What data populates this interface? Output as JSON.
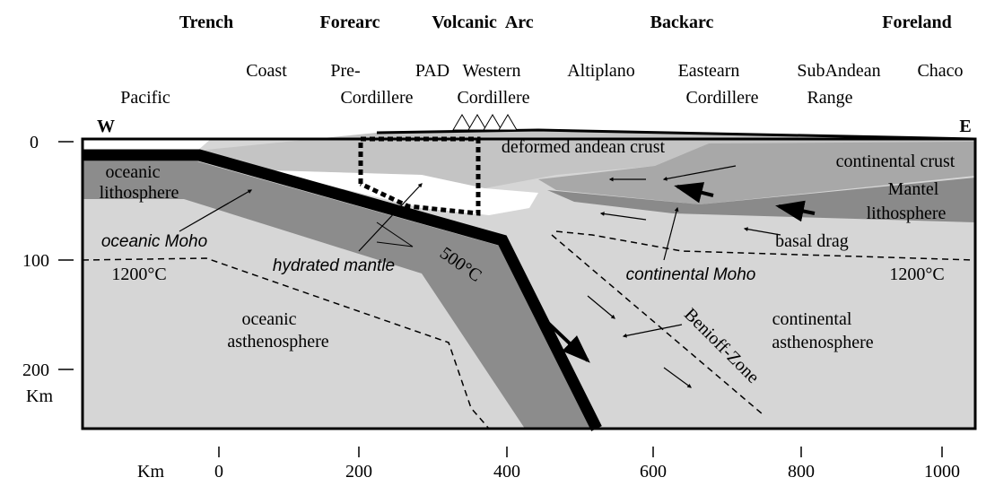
{
  "zones": [
    "Trench",
    "Forearc",
    "Volcanic  Arc",
    "Backarc",
    "Foreland"
  ],
  "places": [
    "Coast",
    "Pre-",
    "Cordillere",
    "PAD",
    "Western",
    "Cordillere",
    "Altiplano",
    "Eastearn",
    "Cordillere",
    "SubAndean",
    "Range",
    "Chaco",
    "Pacific"
  ],
  "compass": [
    "W",
    "E"
  ],
  "depth_axis": {
    "ticks": [
      "0",
      "100",
      "200"
    ],
    "unit": "Km"
  },
  "distance_axis": {
    "unit": "Km",
    "ticks": [
      "0",
      "200",
      "400",
      "600",
      "800",
      "1000"
    ]
  },
  "regions": {
    "deformed_crust": "deformed andean crust",
    "continental_crust": "continental crust",
    "mantel": [
      "Mantel",
      "lithosphere"
    ],
    "oceanic_lithosphere": [
      "oceanic",
      "lithosphere"
    ],
    "oceanic_moho": "oceanic Moho",
    "hydrated_mantle": "hydrated mantle",
    "isotherm_500": "500°C",
    "isotherm_left": "1200°C",
    "isotherm_right": "1200°C",
    "basal_drag": "basal drag",
    "continental_moho": "continental Moho",
    "benioff": "Benioff-Zone",
    "oceanic_asthenosphere": [
      "oceanic",
      "asthenosphere"
    ],
    "continental_asthenosphere": [
      "continental",
      "asthenosphere"
    ]
  }
}
